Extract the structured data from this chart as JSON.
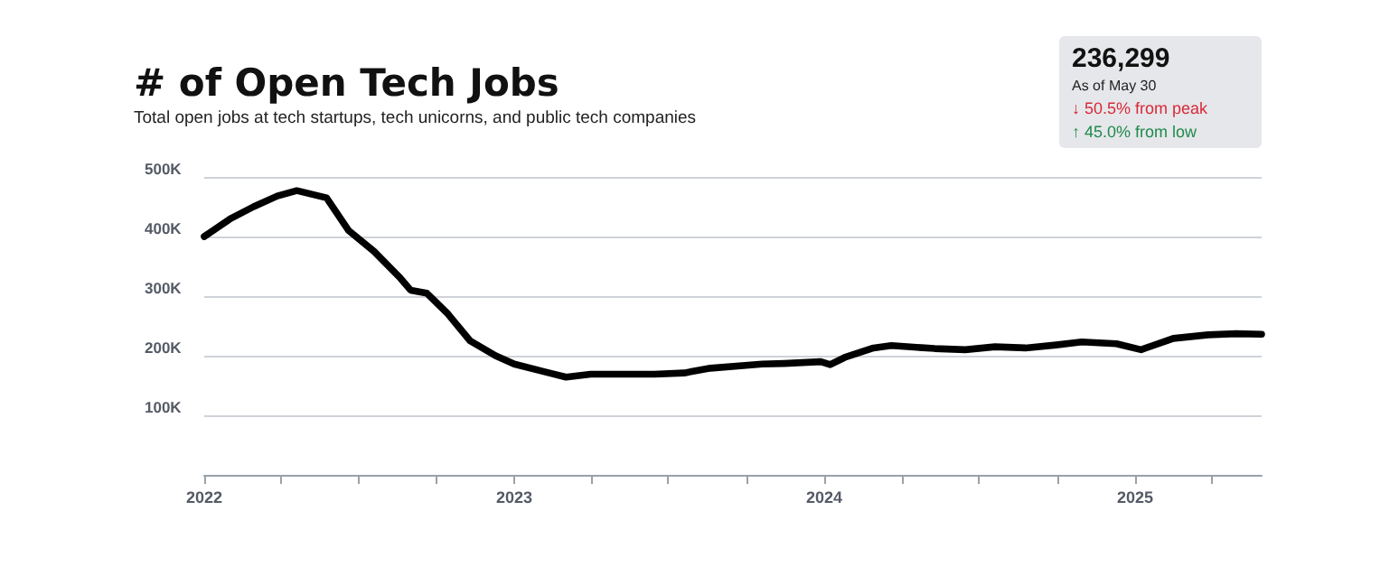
{
  "chart_data": {
    "type": "line",
    "title": "# of Open Tech Jobs",
    "subtitle": "Total open jobs at tech startups, tech unicorns, and public tech companies",
    "annotations": [
      "236,299",
      "As of May 30",
      "↓ 50.5% from peak",
      "↑ 45.0% from low"
    ],
    "x": [
      "2022-01-01",
      "2022-02-01",
      "2022-02-28",
      "2022-03-28",
      "2022-04-20",
      "2022-05-25",
      "2022-06-20",
      "2022-07-20",
      "2022-08-20",
      "2022-09-01",
      "2022-09-20",
      "2022-10-15",
      "2022-11-10",
      "2022-12-10",
      "2023-01-01",
      "2023-02-06",
      "2023-03-03",
      "2023-04-01",
      "2023-06-15",
      "2023-07-20",
      "2023-08-20",
      "2023-10-20",
      "2023-11-15",
      "2023-12-28",
      "2024-01-08",
      "2024-01-25",
      "2024-02-28",
      "2024-03-20",
      "2024-05-10",
      "2024-06-15",
      "2024-07-20",
      "2024-08-25",
      "2024-09-30",
      "2024-10-30",
      "2024-12-10",
      "2025-01-08",
      "2025-02-15",
      "2025-03-28",
      "2025-04-30",
      "2025-05-30"
    ],
    "series": [
      {
        "color": "#000000",
        "values": [
          400000,
          430000,
          450000,
          468000,
          477000,
          465000,
          410000,
          375000,
          330000,
          310000,
          305000,
          270000,
          225000,
          200000,
          186000,
          173000,
          164000,
          169000,
          169000,
          171000,
          179000,
          186000,
          187000,
          190000,
          185000,
          197000,
          213000,
          217000,
          212000,
          210000,
          215000,
          213000,
          218000,
          223000,
          220000,
          210000,
          229000,
          235000,
          237000,
          236000
        ]
      }
    ],
    "xlim": [
      "2022-01-01",
      "2025-05-30"
    ],
    "xticks": [
      {
        "value": "2022",
        "label": "2022"
      },
      {
        "value": "2022-04",
        "label": null
      },
      {
        "value": "2022-07",
        "label": null
      },
      {
        "value": "2022-10",
        "label": null
      },
      {
        "value": "2023",
        "label": "2023"
      },
      {
        "value": "2023-04",
        "label": null
      },
      {
        "value": "2023-07",
        "label": null
      },
      {
        "value": "2023-10",
        "label": null
      },
      {
        "value": "2024",
        "label": "2024"
      },
      {
        "value": "2024-04",
        "label": null
      },
      {
        "value": "2024-07",
        "label": null
      },
      {
        "value": "2024-10",
        "label": null
      },
      {
        "value": "2025",
        "label": "2025"
      },
      {
        "value": "2025-04",
        "label": null
      }
    ],
    "ylim": [
      0,
      500000
    ],
    "yticks": [
      {
        "value": 100000,
        "label": "100K"
      },
      {
        "value": 200000,
        "label": "200K"
      },
      {
        "value": 300000,
        "label": "300K"
      },
      {
        "value": 400000,
        "label": "400K"
      },
      {
        "value": 500000,
        "label": "500K"
      }
    ],
    "grid": "y",
    "marker": "none",
    "line_style": "solid"
  }
}
